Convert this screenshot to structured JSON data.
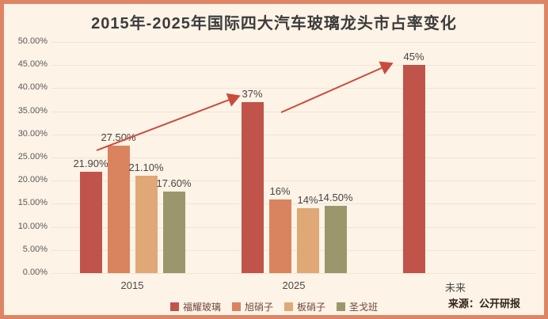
{
  "title": "2015年-2025年国际四大汽车玻璃龙头市占率变化",
  "source_note": "来源：公开研报",
  "colors": {
    "frame_border": "#DE8565",
    "background": "#FDF3E6",
    "gridline": "#EDE5D7",
    "arrow": "#C94B3D",
    "title_text": "#3C3C3C",
    "axis_text": "#5A5A5A",
    "value_label_text": "#464646",
    "legend_text": "#70463A",
    "source_text": "#33231B"
  },
  "chart_data": {
    "type": "bar",
    "title": "2015年-2025年国际四大汽车玻璃龙头市占率变化",
    "categories": [
      "2015",
      "2025",
      "未来"
    ],
    "series": [
      {
        "name": "福耀玻璃",
        "color": "#C0544A",
        "values": [
          21.9,
          37,
          45
        ],
        "labels": [
          "21.90%",
          "37%",
          "45%"
        ]
      },
      {
        "name": "旭硝子",
        "color": "#D9845F",
        "values": [
          27.5,
          16,
          null
        ],
        "labels": [
          "27.50%",
          "16%",
          null
        ]
      },
      {
        "name": "板硝子",
        "color": "#DFA876",
        "values": [
          21.1,
          14,
          null
        ],
        "labels": [
          "21.10%",
          "14%",
          null
        ]
      },
      {
        "name": "圣戈班",
        "color": "#9A976D",
        "values": [
          17.6,
          14.5,
          null
        ],
        "labels": [
          "17.60%",
          "14.50%",
          null
        ]
      }
    ],
    "xlabel": "",
    "ylabel": "",
    "ylim": [
      0,
      50
    ],
    "ytick_step": 5,
    "ytick_labels": [
      "0.00%",
      "5.00%",
      "10.00%",
      "15.00%",
      "20.00%",
      "25.00%",
      "30.00%",
      "35.00%",
      "40.00%",
      "45.00%",
      "50.00%"
    ],
    "grid": true,
    "legend_position": "bottom",
    "annotations": {
      "arrows": [
        {
          "from": [
            117,
            185
          ],
          "to": [
            295,
            117
          ]
        },
        {
          "from": [
            350,
            137
          ],
          "to": [
            488,
            76
          ]
        }
      ]
    }
  }
}
